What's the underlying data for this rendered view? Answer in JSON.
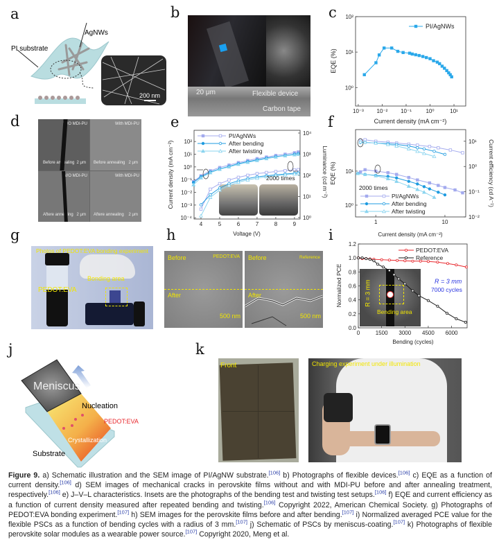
{
  "panel_labels": {
    "a": "a",
    "b": "b",
    "c": "c",
    "d": "d",
    "e": "e",
    "f": "f",
    "g": "g",
    "h": "h",
    "i": "i",
    "j": "j",
    "k": "k"
  },
  "panel_a": {
    "pi_substrate": "PI substrate",
    "agnws": "AgNWs",
    "scale_bar": "200 nm"
  },
  "panel_b": {
    "thickness": "20 μm",
    "flexible_device": "Flexible device",
    "carbon_tape": "Carbon tape",
    "emission_color": "#1aa0f0"
  },
  "panel_d": {
    "quadrants": [
      {
        "sample": "W/O MDI-PU",
        "condition": "Before annealing",
        "scale": "2 μm"
      },
      {
        "sample": "With MDI-PU",
        "condition": "Before annealing",
        "scale": "2 μm"
      },
      {
        "sample": "W/O MDI-PU",
        "condition": "Aftere annealing",
        "scale": "2 μm"
      },
      {
        "sample": "With MDI-PU",
        "condition": "Aftere annealing",
        "scale": "2 μm"
      }
    ]
  },
  "panel_g": {
    "title": "Photos of PEDOT:EVA bonding experiment",
    "vial_label": "PEDOT:EVA",
    "bonding_area": "Bonding area"
  },
  "panel_h": {
    "left_tag": "PEDOT:EVA",
    "right_tag": "Reference",
    "before": "Before",
    "after": "After",
    "scale": "500 nm"
  },
  "panel_j": {
    "meniscus": "Meniscus",
    "nucleation": "Nucleation",
    "pedot_eva": "PEDOT:EVA",
    "crystallization": "Crystallization",
    "substrate": "Substrate"
  },
  "panel_k": {
    "front": "Front",
    "charging": "Charging experiment under illumination"
  },
  "chart_data": [
    {
      "id": "c",
      "type": "line",
      "xlabel": "Current density (mA cm⁻²)",
      "ylabel": "EQE (%)",
      "x_scale": "log",
      "y_scale": "log",
      "xlim": [
        0.00077,
        31
      ],
      "ylim": [
        0.3,
        100
      ],
      "x_ticks": [
        0.001,
        0.01,
        0.1,
        1,
        10
      ],
      "x_tick_labels": [
        "10⁻³",
        "10⁻²",
        "10⁻¹",
        "10⁰",
        "10¹"
      ],
      "y_ticks": [
        1,
        10,
        100
      ],
      "y_tick_labels": [
        "10⁰",
        "10¹",
        "10²"
      ],
      "legend_position": "top-right",
      "series": [
        {
          "name": "PI/AgNWs",
          "color": "#2aa8ea",
          "marker": "square",
          "filled": true,
          "x": [
            0.0018,
            0.0055,
            0.0075,
            0.012,
            0.025,
            0.045,
            0.075,
            0.14,
            0.18,
            0.25,
            0.35,
            0.5,
            0.7,
            1.0,
            1.4,
            2.0,
            2.5,
            3.2,
            4,
            5,
            6,
            7,
            8
          ],
          "y": [
            2.3,
            5,
            8.3,
            13,
            13,
            10.5,
            9.7,
            9.3,
            8.8,
            8.4,
            8.0,
            7.5,
            7.0,
            6.5,
            5.7,
            5.2,
            4.7,
            4.0,
            3.5,
            3.0,
            2.6,
            2.3,
            2.0
          ]
        }
      ]
    },
    {
      "id": "e",
      "type": "line",
      "xlabel": "Voltage (V)",
      "ylabel": "Current density (mA cm⁻²)",
      "y2label": "Luminance (cd m⁻²)",
      "x_scale": "linear",
      "y_scale": "log",
      "y2_scale": "log",
      "xlim": [
        3.63,
        9.3
      ],
      "ylim": [
        8e-05,
        760
      ],
      "y2lim": [
        0.85,
        13500
      ],
      "x_ticks": [
        4,
        5,
        6,
        7,
        8,
        9
      ],
      "x_tick_labels": [
        "4",
        "5",
        "6",
        "7",
        "8",
        "9"
      ],
      "y_ticks": [
        0.0001,
        0.001,
        0.01,
        0.1,
        1,
        10,
        100
      ],
      "y_tick_labels": [
        "10⁻⁴",
        "10⁻³",
        "10⁻²",
        "10⁻¹",
        "10⁰",
        "10¹",
        "10²"
      ],
      "y2_ticks": [
        1,
        10,
        100,
        1000,
        10000
      ],
      "y2_tick_labels": [
        "10⁰",
        "10¹",
        "10²",
        "10³",
        "10⁴"
      ],
      "annotation": "2000 times",
      "legend_position": "top-left",
      "x": [
        3.6,
        4.0,
        4.5,
        5.0,
        5.5,
        6.0,
        6.5,
        7.0,
        7.5,
        8.0,
        8.5,
        9.0,
        9.2
      ],
      "series": [
        {
          "name": "PI/AgNWs",
          "color": "#a3aaee",
          "axis": "y",
          "marker": "square",
          "filled": true,
          "y": [
            0.07,
            0.2,
            0.5,
            0.9,
            1.4,
            2.2,
            3.2,
            4.5,
            6,
            8,
            10,
            13,
            15
          ]
        },
        {
          "name": "After bending",
          "color": "#1e9be0",
          "axis": "y",
          "marker": "circle",
          "filled": true,
          "y": [
            0.06,
            0.17,
            0.4,
            0.7,
            1.1,
            1.8,
            2.6,
            3.6,
            5,
            6.5,
            8,
            10,
            11
          ]
        },
        {
          "name": "After twisting",
          "color": "#8ad4ef",
          "axis": "y",
          "marker": "triangle",
          "filled": true,
          "y": [
            0.04,
            0.14,
            0.35,
            0.65,
            1.0,
            1.6,
            2.3,
            3.2,
            4.5,
            6,
            7.5,
            9,
            10
          ]
        },
        {
          "name": "PI/AgNWs",
          "color": "#a3aaee",
          "axis": "y2",
          "marker": "square",
          "filled": false,
          "y": [
            null,
            2.5,
            22,
            40,
            60,
            80,
            100,
            120,
            135,
            150,
            165,
            180,
            185
          ]
        },
        {
          "name": "After bending",
          "color": "#1e9be0",
          "axis": "y2",
          "marker": "circle",
          "filled": false,
          "y": [
            null,
            4,
            12,
            25,
            40,
            55,
            70,
            85,
            95,
            105,
            115,
            125,
            130
          ]
        },
        {
          "name": "After twisting",
          "color": "#8ad4ef",
          "axis": "y2",
          "marker": "triangle",
          "filled": false,
          "y": [
            null,
            1.2,
            9,
            20,
            33,
            47,
            60,
            73,
            85,
            95,
            105,
            115,
            120
          ]
        }
      ]
    },
    {
      "id": "f",
      "type": "line",
      "xlabel": "Current density (mA cm⁻²)",
      "ylabel": "EQE (%)",
      "y2label": "Current efficiency (cd A⁻¹)",
      "x_scale": "log",
      "y_scale": "log",
      "y2_scale": "log",
      "xlim": [
        0.51,
        20
      ],
      "ylim": [
        0.45,
        166
      ],
      "y2lim": [
        0.01,
        29
      ],
      "x_ticks": [
        1,
        10
      ],
      "x_tick_labels": [
        "1",
        "10"
      ],
      "y_ticks": [
        1,
        10
      ],
      "y_tick_labels": [
        "10⁰",
        "10¹"
      ],
      "y2_ticks": [
        0.01,
        0.1,
        1,
        10
      ],
      "y2_tick_labels": [
        "10⁻²",
        "10⁻¹",
        "10⁰",
        "10¹"
      ],
      "annotation": "2000 times",
      "legend_position": "bottom-left",
      "series": [
        {
          "name": "PI/AgNWs",
          "color": "#a3aaee",
          "axis": "y",
          "marker": "square",
          "filled": true,
          "x": [
            0.6,
            0.7,
            1,
            1.5,
            2,
            3,
            4,
            6,
            8,
            10,
            14,
            18
          ],
          "y": [
            9.5,
            11,
            10,
            9,
            8,
            6.5,
            5.5,
            4.5,
            3.8,
            3.3,
            2.8,
            2.3
          ]
        },
        {
          "name": "After bending",
          "color": "#1e9be0",
          "axis": "y",
          "marker": "circle",
          "filled": true,
          "x": [
            0.55,
            0.7,
            1,
            1.5,
            2,
            3,
            4,
            5,
            6,
            8,
            10
          ],
          "y": [
            8.5,
            8,
            7.5,
            7,
            6.3,
            5,
            4.2,
            3.5,
            3,
            2.4,
            2
          ]
        },
        {
          "name": "After twisting",
          "color": "#8ad4ef",
          "axis": "y",
          "marker": "triangle",
          "filled": true,
          "x": [
            0.55,
            0.7,
            1,
            1.5,
            2,
            3,
            4,
            5,
            7
          ],
          "y": [
            8.5,
            8,
            7.3,
            6,
            5,
            3.6,
            2.9,
            2.4,
            1.7
          ]
        },
        {
          "name": "PI/AgNWs",
          "color": "#a3aaee",
          "axis": "y2",
          "marker": "square",
          "filled": false,
          "x": [
            0.6,
            0.7,
            1,
            1.5,
            2,
            3,
            4,
            6,
            8,
            12,
            18
          ],
          "y": [
            11,
            11.5,
            10,
            9.2,
            8.5,
            7.7,
            7,
            6.2,
            5.5,
            4.5,
            3.5
          ]
        },
        {
          "name": "After bending",
          "color": "#1e9be0",
          "axis": "y2",
          "marker": "circle",
          "filled": false,
          "x": [
            0.6,
            0.7,
            1,
            1.5,
            2,
            3,
            4,
            5,
            7,
            10
          ],
          "y": [
            9,
            9,
            8.5,
            8,
            7.5,
            6.5,
            5.5,
            5,
            4,
            3
          ]
        },
        {
          "name": "After twisting",
          "color": "#8ad4ef",
          "axis": "y2",
          "marker": "triangle",
          "filled": false,
          "x": [
            0.6,
            0.7,
            1,
            1.5,
            2,
            3,
            4,
            5,
            7
          ],
          "y": [
            9.5,
            9.2,
            8.5,
            7.5,
            6.5,
            5,
            4,
            3.3,
            2.5
          ]
        }
      ]
    },
    {
      "id": "i",
      "type": "line",
      "xlabel": "Bending (cycles)",
      "ylabel": "Normalized PCE",
      "x_scale": "linear",
      "y_scale": "linear",
      "xlim": [
        0,
        7000
      ],
      "ylim": [
        0,
        1.2
      ],
      "x_ticks": [
        0,
        1500,
        3000,
        4500,
        6000
      ],
      "x_tick_labels": [
        "0",
        "1500",
        "3000",
        "4500",
        "6000"
      ],
      "y_ticks": [
        0,
        0.2,
        0.4,
        0.6,
        0.8,
        1.0,
        1.2
      ],
      "y_tick_labels": [
        "0.0",
        "0.2",
        "0.4",
        "0.6",
        "0.8",
        "1.0",
        "1.2"
      ],
      "legend_position": "top-right",
      "annotations": [
        "R = 3 mm",
        "7000 cycles"
      ],
      "inset": {
        "radius_label": "R = 3 mm",
        "bending_area": "Bending area"
      },
      "series": [
        {
          "name": "PEDOT:EVA",
          "color": "#e8262b",
          "marker": "circle",
          "filled": false,
          "x": [
            0,
            250,
            500,
            750,
            1000,
            1500,
            2000,
            2500,
            3000,
            3500,
            4000,
            4500,
            5100,
            5750,
            6300,
            6950
          ],
          "y": [
            1.0,
            0.99,
            0.99,
            0.985,
            0.98,
            0.975,
            0.97,
            0.965,
            0.96,
            0.955,
            0.955,
            0.95,
            0.94,
            0.92,
            0.9,
            0.87
          ]
        },
        {
          "name": "Reference",
          "color": "#1a1a1a",
          "marker": "circle",
          "filled": false,
          "x": [
            0,
            250,
            500,
            750,
            1000,
            1250,
            1600,
            2000,
            2300,
            2600,
            3000,
            3500,
            3900,
            4500,
            5100,
            5700,
            6300,
            6900
          ],
          "y": [
            1.0,
            1.0,
            0.99,
            0.98,
            0.96,
            0.91,
            0.87,
            0.82,
            0.76,
            0.7,
            0.63,
            0.53,
            0.46,
            0.39,
            0.31,
            0.21,
            0.13,
            0.08
          ]
        }
      ]
    }
  ],
  "caption": {
    "figure_label": "Figure 9.",
    "segments": [
      {
        "t": " a) Schematic illustration and the SEM image of PI/AgNW substrate.",
        "ref": "[106]"
      },
      {
        "t": " b) Photographs of flexible devices.",
        "ref": "[106]"
      },
      {
        "t": " c) EQE as a function of current density.",
        "ref": "[106]"
      },
      {
        "t": " d) SEM images of mechanical cracks in perovskite films without and with MDI-PU before and after annealing treatment, respectively.",
        "ref": "[106]"
      },
      {
        "t": " e) J–V–L characteristics. Insets are the photographs of the bending test and twisting test setups.",
        "ref": "[106]"
      },
      {
        "t": " f) EQE and current efficiency as a function of current density measured after repeated bending and twisting.",
        "ref": "[106]"
      },
      {
        "t": " Copyright 2022, American Chemical Society. g) Photographs of PEDOT:EVA bonding experiment.",
        "ref": "[107]"
      },
      {
        "t": " h) SEM images for the perovskite films before and after bending.",
        "ref": "[107]"
      },
      {
        "t": " i) Normalized averaged PCE value for the flexible PSCs as a function of bending cycles with a radius of 3 mm.",
        "ref": "[107]"
      },
      {
        "t": " j) Schematic of PSCs by meniscus-coating.",
        "ref": "[107]"
      },
      {
        "t": " k) Photographs of flexible perovskite solar modules as a wearable power source.",
        "ref": "[107]"
      },
      {
        "t": " Copyright 2020, Meng et al.",
        "ref": null
      }
    ]
  }
}
